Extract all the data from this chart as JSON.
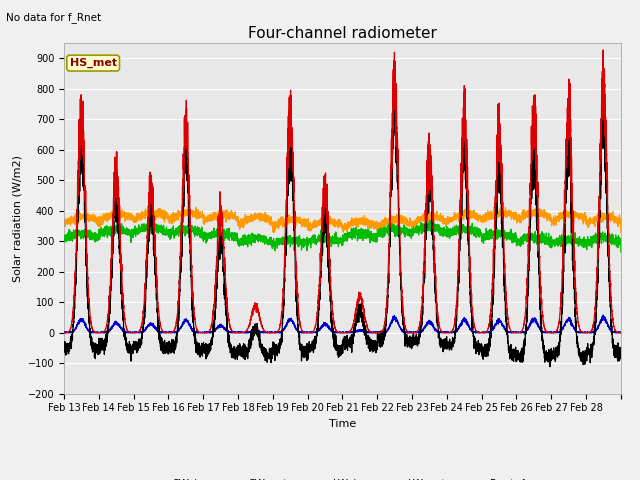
{
  "title": "Four-channel radiometer",
  "top_left_text": "No data for f_Rnet",
  "ylabel": "Solar radiation (W/m2)",
  "xlabel": "Time",
  "annotation_label": "HS_met",
  "annotation_box_color": "#ffffcc",
  "annotation_border_color": "#999900",
  "ylim": [
    -200,
    950
  ],
  "yticks": [
    -200,
    -100,
    0,
    100,
    200,
    300,
    400,
    500,
    600,
    700,
    800,
    900
  ],
  "xtick_labels": [
    "Feb 13",
    "Feb 14",
    "Feb 15",
    "Feb 16",
    "Feb 17",
    "Feb 18",
    "Feb 19",
    "Feb 20",
    "Feb 21",
    "Feb 22",
    "Feb 23",
    "Feb 24",
    "Feb 25",
    "Feb 26",
    "Feb 27",
    "Feb 28"
  ],
  "colors": {
    "SW_in": "#dd0000",
    "SW_out": "#0000cc",
    "LW_in": "#00bb00",
    "LW_out": "#ff9900",
    "Rnet_4way": "#000000"
  },
  "background_color": "#e8e8e8",
  "grid_color": "#ffffff",
  "title_fontsize": 11,
  "label_fontsize": 8,
  "tick_fontsize": 7,
  "annot_fontsize": 8
}
